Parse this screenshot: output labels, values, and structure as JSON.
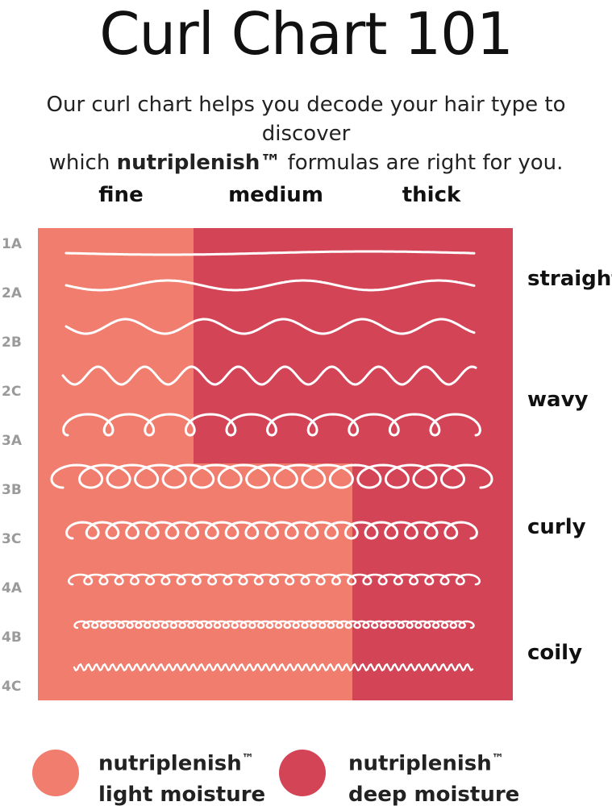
{
  "header": {
    "title": "Curl Chart 101",
    "subtitle_line1": "Our curl chart helps you decode your hair type to discover",
    "subtitle_prefix": "which ",
    "subtitle_brand": "nutriplenish™",
    "subtitle_suffix": " formulas are right for you."
  },
  "columns": [
    "fine",
    "medium",
    "thick"
  ],
  "rows": [
    "1A",
    "2A",
    "2B",
    "2C",
    "3A",
    "3B",
    "3C",
    "4A",
    "4B",
    "4C"
  ],
  "categories": [
    "straight",
    "wavy",
    "curly",
    "coily"
  ],
  "colors": {
    "light_moisture": "#F07D6E",
    "deep_moisture": "#D34456",
    "stroke": "#FFFFFF"
  },
  "legend": [
    {
      "brand": "nutriplenish",
      "tm": "™",
      "label": "light moisture",
      "color_key": "light_moisture"
    },
    {
      "brand": "nutriplenish",
      "tm": "™",
      "label": "deep moisture",
      "color_key": "deep_moisture"
    }
  ]
}
